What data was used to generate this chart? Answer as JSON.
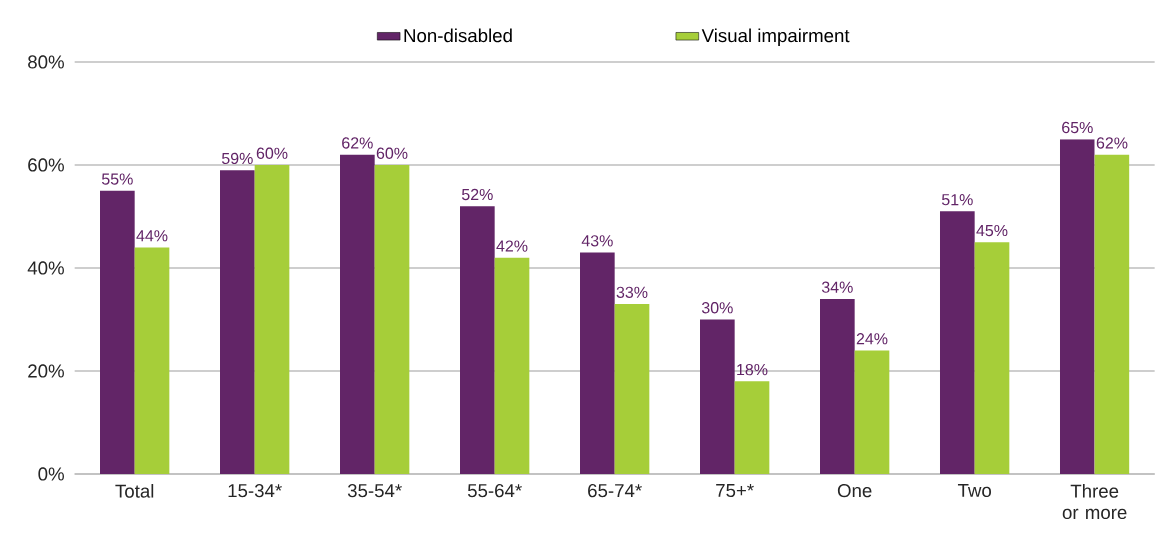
{
  "chart_data": {
    "type": "bar",
    "categories": [
      "Total",
      "15-34*",
      "35-54*",
      "55-64*",
      "65-74*",
      "75+*",
      "One",
      "Two",
      "Three or more"
    ],
    "series": [
      {
        "name": "Non-disabled",
        "color": "#622567",
        "values": [
          55,
          59,
          62,
          52,
          43,
          30,
          34,
          51,
          65
        ],
        "value_labels": [
          "55%",
          "59%",
          "62%",
          "52%",
          "43%",
          "30%",
          "34%",
          "51%",
          "65%"
        ]
      },
      {
        "name": "Visual impairment",
        "color": "#a6ce39",
        "values": [
          44,
          60,
          60,
          42,
          33,
          18,
          24,
          45,
          62
        ],
        "value_labels": [
          "44%",
          "60%",
          "60%",
          "42%",
          "33%",
          "18%",
          "24%",
          "45%",
          "62%"
        ]
      }
    ],
    "ylim": [
      0,
      80
    ],
    "yticks": [
      {
        "value": 0,
        "label": "0%"
      },
      {
        "value": 20,
        "label": "20%"
      },
      {
        "value": 40,
        "label": "40%"
      },
      {
        "value": 60,
        "label": "60%"
      },
      {
        "value": 80,
        "label": "80%"
      }
    ],
    "grid": "y",
    "legend": "top"
  }
}
